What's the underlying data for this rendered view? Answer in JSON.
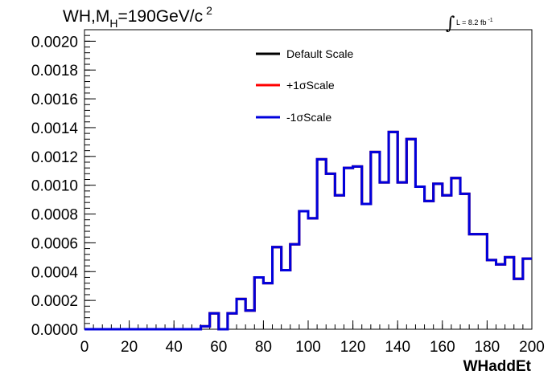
{
  "chart_data": {
    "type": "line",
    "title": "WH,M",
    "title_sub": "H",
    "title_mid": "=190GeV/c",
    "title_sup": "2",
    "lumi_symbol": "∫",
    "lumi_text": "L = 8.2 fb",
    "lumi_sup": "-1",
    "xlabel": "WHaddEt",
    "ylabel": "",
    "xlim": [
      0,
      200
    ],
    "ylim": [
      0,
      0.00208
    ],
    "x_ticks": [
      {
        "value": 0,
        "label": "0"
      },
      {
        "value": 20,
        "label": "20"
      },
      {
        "value": 40,
        "label": "40"
      },
      {
        "value": 60,
        "label": "60"
      },
      {
        "value": 80,
        "label": "80"
      },
      {
        "value": 100,
        "label": "100"
      },
      {
        "value": 120,
        "label": "120"
      },
      {
        "value": 140,
        "label": "140"
      },
      {
        "value": 160,
        "label": "160"
      },
      {
        "value": 180,
        "label": "180"
      },
      {
        "value": 200,
        "label": "200"
      }
    ],
    "y_ticks": [
      {
        "value": 0.0,
        "label": "0.0000"
      },
      {
        "value": 0.0002,
        "label": "0.0002"
      },
      {
        "value": 0.0004,
        "label": "0.0004"
      },
      {
        "value": 0.0006,
        "label": "0.0006"
      },
      {
        "value": 0.0008,
        "label": "0.0008"
      },
      {
        "value": 0.001,
        "label": "0.0010"
      },
      {
        "value": 0.0012,
        "label": "0.0012"
      },
      {
        "value": 0.0014,
        "label": "0.0014"
      },
      {
        "value": 0.0016,
        "label": "0.0016"
      },
      {
        "value": 0.0018,
        "label": "0.0018"
      },
      {
        "value": 0.002,
        "label": "0.0020"
      }
    ],
    "bin_edges": [
      0,
      4,
      8,
      12,
      16,
      20,
      24,
      28,
      32,
      36,
      40,
      44,
      48,
      52,
      56,
      60,
      64,
      68,
      72,
      76,
      80,
      84,
      88,
      92,
      96,
      100,
      104,
      108,
      112,
      116,
      120,
      124,
      128,
      132,
      136,
      140,
      144,
      148,
      152,
      156,
      160,
      164,
      168,
      172,
      176,
      180,
      184,
      188,
      192,
      196,
      200
    ],
    "series": [
      {
        "name": "Default Scale",
        "color": "#000000",
        "values": [
          0,
          0,
          0,
          0,
          0,
          0,
          0,
          0,
          0,
          0,
          0,
          0,
          0,
          2e-05,
          0.00011,
          0.0,
          0.00011,
          0.00021,
          0.00013,
          0.00036,
          0.00032,
          0.00057,
          0.00041,
          0.00059,
          0.00082,
          0.00077,
          0.00118,
          0.00108,
          0.00093,
          0.00112,
          0.00113,
          0.00087,
          0.00123,
          0.00102,
          0.00137,
          0.00102,
          0.00132,
          0.00099,
          0.00089,
          0.00101,
          0.00093,
          0.00105,
          0.00094,
          0.00066,
          0.00066,
          0.00048,
          0.00045,
          0.0005,
          0.00035,
          0.00049
        ]
      },
      {
        "name": "+1σScale",
        "color": "#ff0000",
        "values": [
          0,
          0,
          0,
          0,
          0,
          0,
          0,
          0,
          0,
          0,
          0,
          0,
          0,
          2e-05,
          0.00011,
          0.0,
          0.00011,
          0.00021,
          0.00013,
          0.00036,
          0.00032,
          0.00057,
          0.00041,
          0.00059,
          0.00082,
          0.00077,
          0.00118,
          0.00108,
          0.00093,
          0.00112,
          0.00113,
          0.00087,
          0.00123,
          0.00102,
          0.00137,
          0.00102,
          0.00132,
          0.00099,
          0.00089,
          0.00101,
          0.00093,
          0.00105,
          0.00094,
          0.00066,
          0.00066,
          0.00048,
          0.00045,
          0.0005,
          0.00035,
          0.00049
        ]
      },
      {
        "name": "-1σScale",
        "color": "#0000dd",
        "values": [
          0,
          0,
          0,
          0,
          0,
          0,
          0,
          0,
          0,
          0,
          0,
          0,
          0,
          2e-05,
          0.00011,
          0.0,
          0.00011,
          0.00021,
          0.00013,
          0.00036,
          0.00032,
          0.00057,
          0.00041,
          0.00059,
          0.00082,
          0.00077,
          0.00118,
          0.00108,
          0.00093,
          0.00112,
          0.00113,
          0.00087,
          0.00123,
          0.00102,
          0.00137,
          0.00102,
          0.00132,
          0.00099,
          0.00089,
          0.00101,
          0.00093,
          0.00105,
          0.00094,
          0.00066,
          0.00066,
          0.00048,
          0.00045,
          0.0005,
          0.00035,
          0.00049
        ]
      }
    ],
    "legend_position": "top-center"
  }
}
